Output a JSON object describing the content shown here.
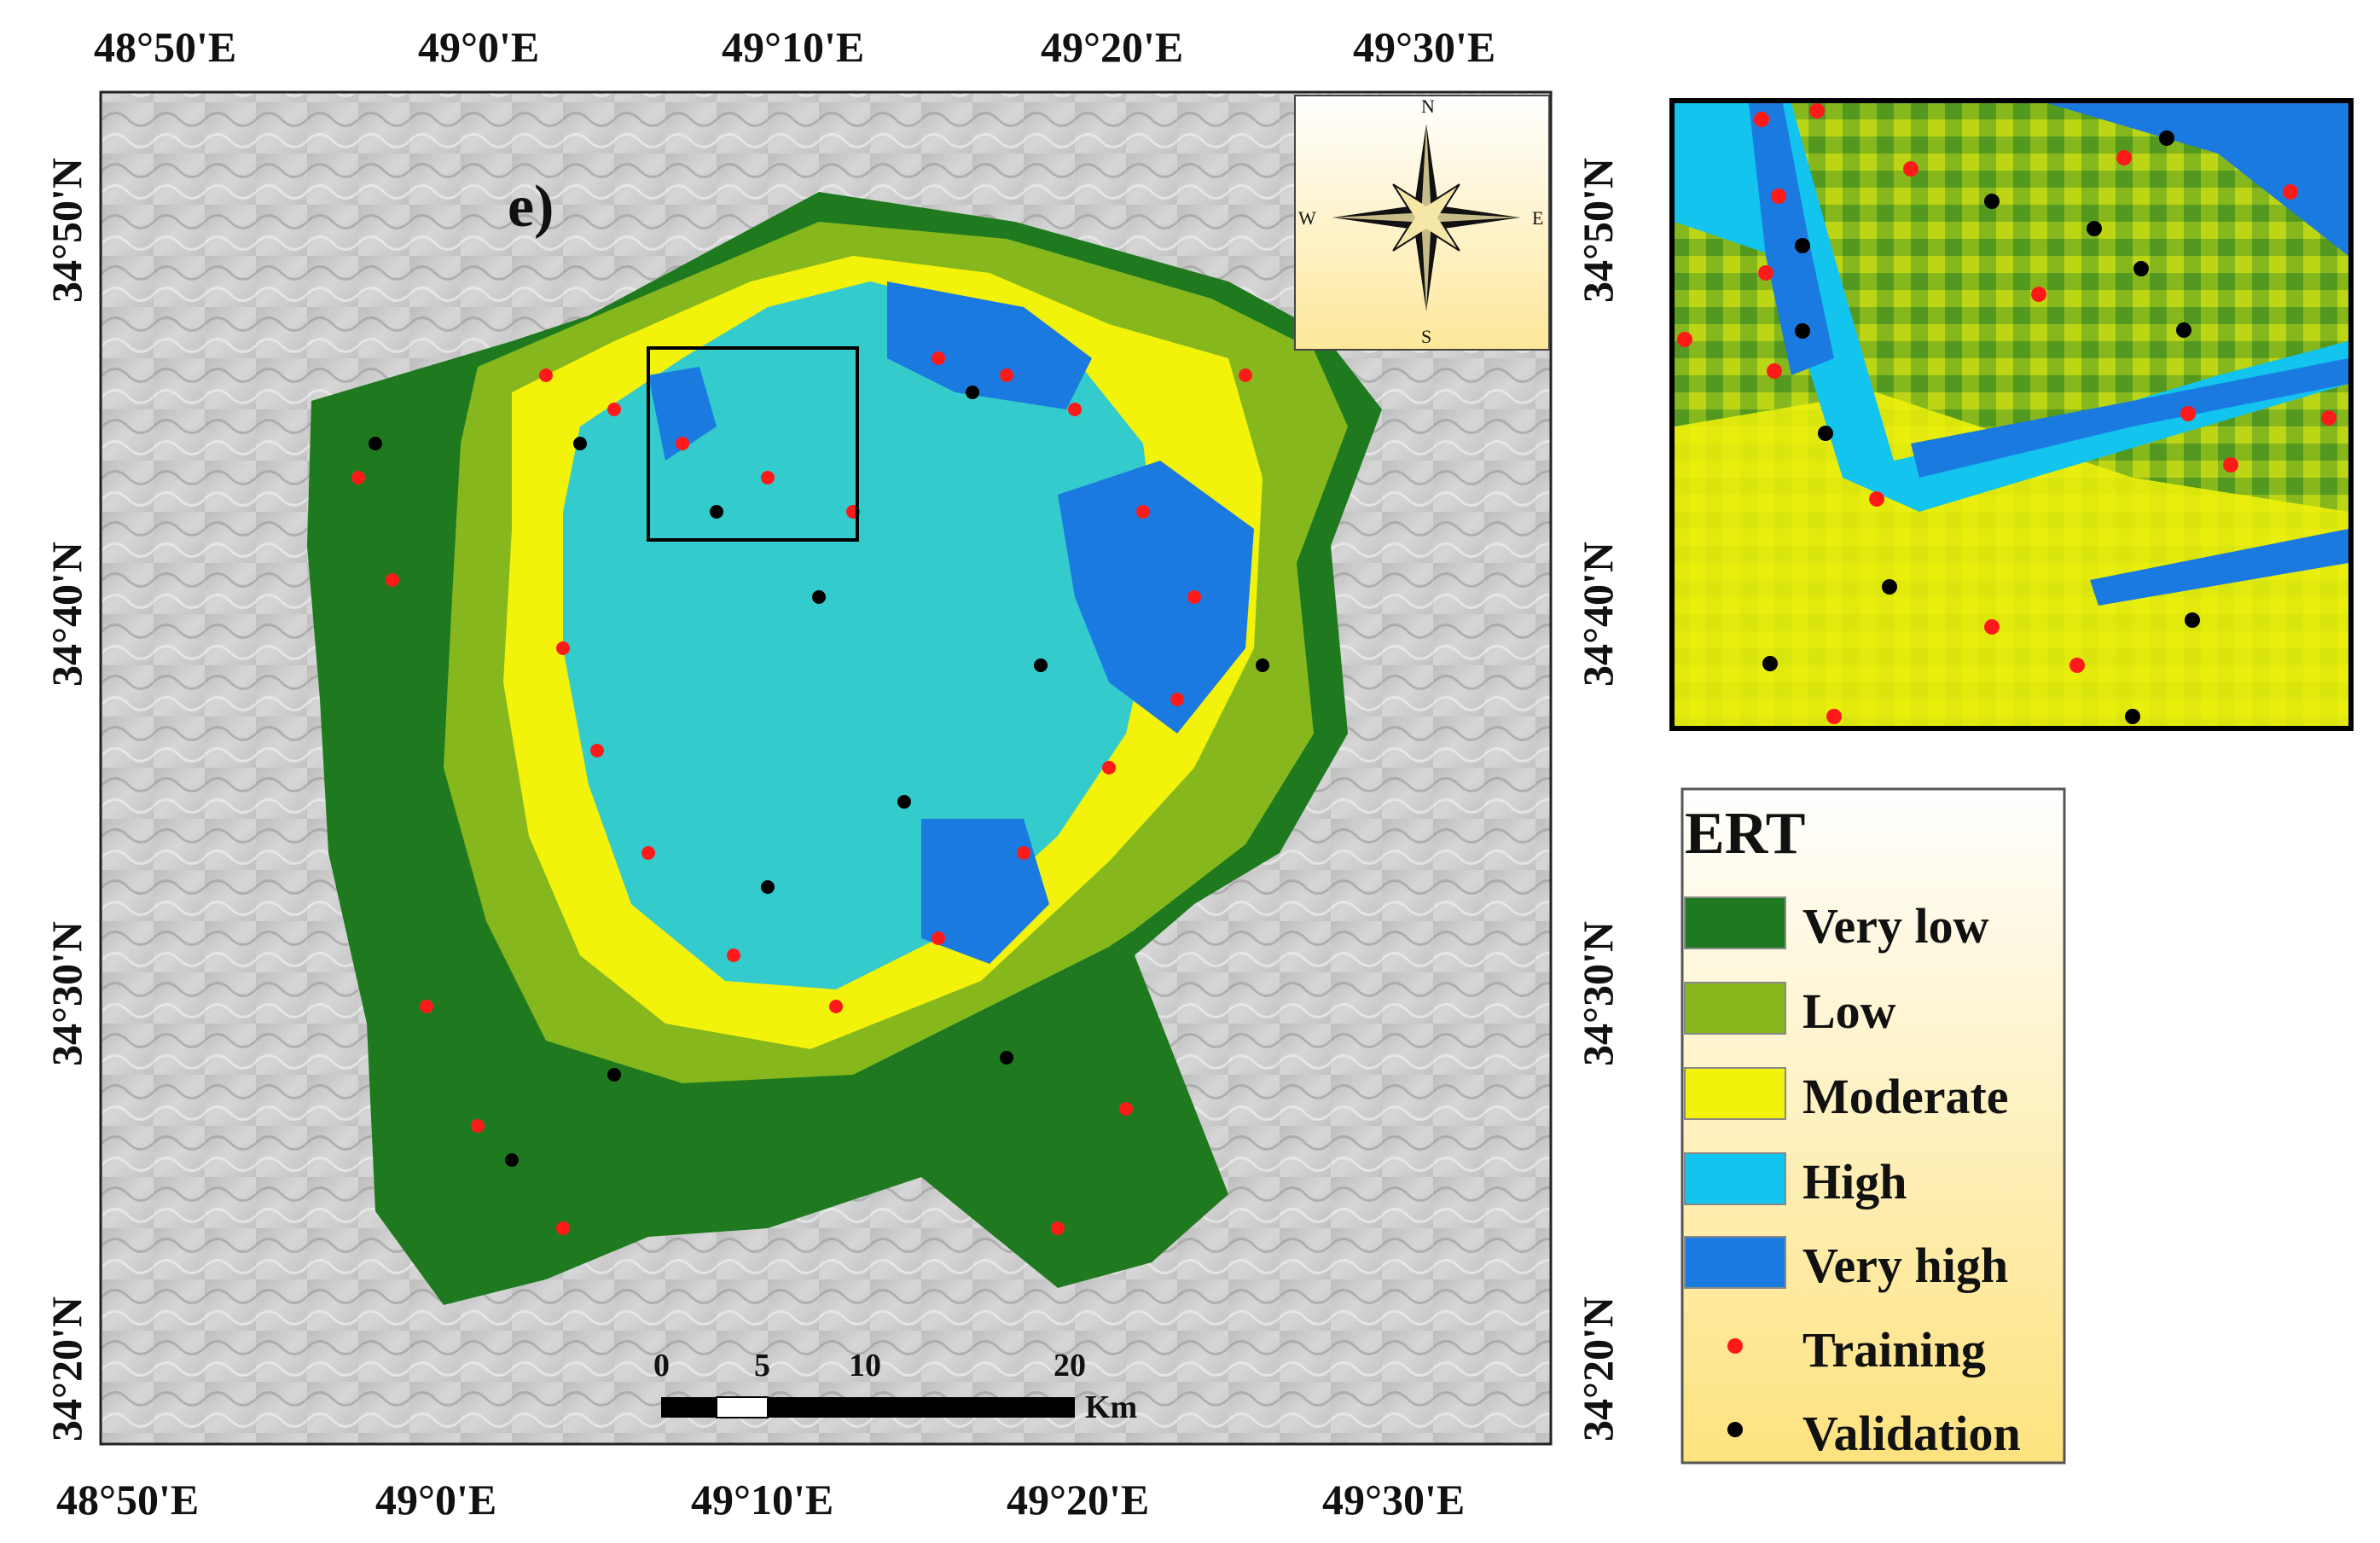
{
  "map": {
    "panel_label": "e)",
    "top_longitudes": [
      "48°50'E",
      "49°0'E",
      "49°10'E",
      "49°20'E",
      "49°30'E"
    ],
    "bottom_longitudes": [
      "48°50'E",
      "49°0'E",
      "49°10'E",
      "49°20'E",
      "49°30'E"
    ],
    "left_latitudes": [
      "34°50'N",
      "34°40'N",
      "34°30'N",
      "34°20'N"
    ],
    "right_latitudes": [
      "34°50'N",
      "34°40'N",
      "34°30'N",
      "34°20'N"
    ]
  },
  "compass": {
    "n": "N",
    "s": "S",
    "e": "E",
    "w": "W"
  },
  "scale_bar": {
    "labels": [
      "0",
      "5",
      "10",
      "20"
    ],
    "unit": "Km"
  },
  "legend": {
    "title": "ERT",
    "classes": [
      {
        "label": "Very low",
        "color": "#1f7a1f"
      },
      {
        "label": "Low",
        "color": "#86b81e"
      },
      {
        "label": "Moderate",
        "color": "#f2f20a"
      },
      {
        "label": "High",
        "color": "#12c4ee"
      },
      {
        "label": "Very high",
        "color": "#1a7ae0"
      }
    ],
    "points": [
      {
        "label": "Training",
        "color": "#ff1a1a"
      },
      {
        "label": "Validation",
        "color": "#000000"
      }
    ]
  }
}
